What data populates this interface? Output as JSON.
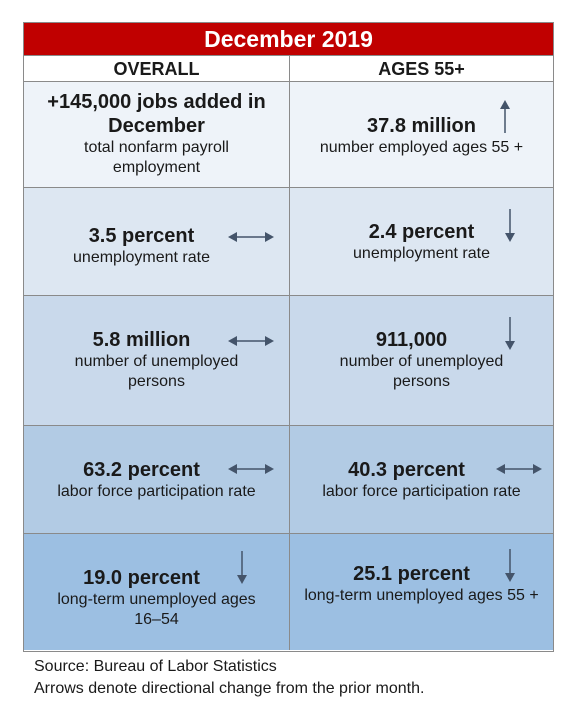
{
  "title": "December 2019",
  "columns": {
    "overall": "OVERALL",
    "ages55": "AGES 55+"
  },
  "rows": [
    {
      "overall": {
        "value": "+145,000 jobs added in December",
        "desc": "total nonfarm payroll employment",
        "arrow": "none"
      },
      "ages55": {
        "value": "37.8 million",
        "desc": "number employed ages 55 +",
        "arrow": "up"
      }
    },
    {
      "overall": {
        "value": "3.5 percent",
        "desc": "unemployment rate",
        "arrow": "left-right"
      },
      "ages55": {
        "value": "2.4 percent",
        "desc": "unemployment rate",
        "arrow": "down"
      }
    },
    {
      "overall": {
        "value": "5.8 million",
        "desc": "number of unemployed persons",
        "arrow": "left-right"
      },
      "ages55": {
        "value": "911,000",
        "desc": "number of unemployed persons",
        "arrow": "down"
      }
    },
    {
      "overall": {
        "value": "63.2 percent",
        "desc": "labor force participation rate",
        "arrow": "left-right"
      },
      "ages55": {
        "value": "40.3 percent",
        "desc": "labor force participation rate",
        "arrow": "left-right"
      }
    },
    {
      "overall": {
        "value": "19.0 percent",
        "desc": "long-term unemployed ages 16–54",
        "arrow": "down"
      },
      "ages55": {
        "value": "25.1 percent",
        "desc": "long-term unemployed ages 55 +",
        "arrow": "down"
      }
    }
  ],
  "footer": {
    "source": "Source: Bureau of Labor Statistics",
    "note": "Arrows denote directional change from the prior month."
  },
  "colors": {
    "title_bg": "#c00000",
    "row_bg": [
      "#eef3f9",
      "#dde7f2",
      "#c9d9eb",
      "#b2cbe4",
      "#9cbfe2"
    ],
    "arrow": "#44546a"
  }
}
